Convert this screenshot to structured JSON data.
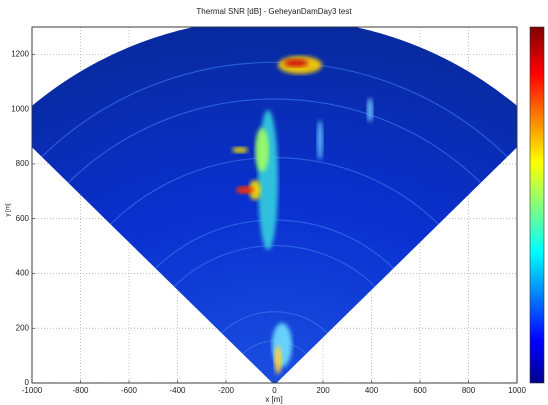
{
  "chart_data": {
    "type": "heatmap",
    "title": "Thermal SNR [dB] - GeheyanDamDay3 test",
    "x_label": "x [m]",
    "y_label": "y [m]",
    "xlim": [
      -1000,
      1000
    ],
    "ylim": [
      0,
      1300
    ],
    "xticks": [
      -1000,
      -800,
      -600,
      -400,
      -200,
      0,
      200,
      400,
      600,
      800,
      1000
    ],
    "yticks": [
      0,
      200,
      400,
      600,
      800,
      1000,
      1200
    ],
    "grid": true
  }
}
